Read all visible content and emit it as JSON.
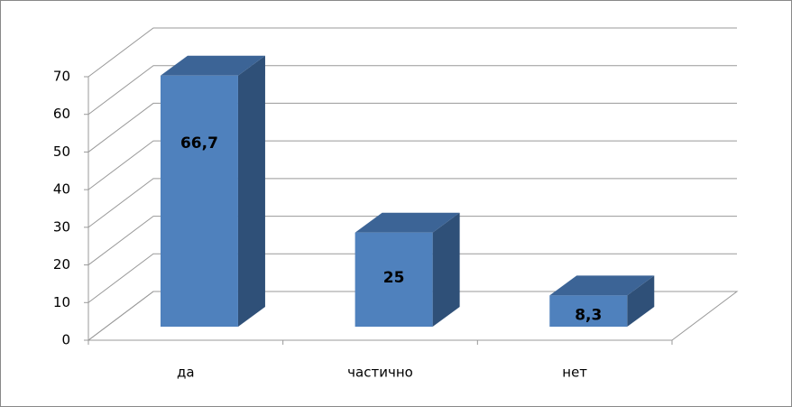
{
  "chart_data": {
    "type": "bar",
    "categories": [
      "да",
      "частично",
      "нет"
    ],
    "values": [
      66.7,
      25,
      8.3
    ],
    "value_labels": [
      "66,7",
      "25",
      "8,3"
    ],
    "color": "#4f81bd",
    "ylim": [
      0,
      70
    ],
    "yticks": [
      0,
      10,
      20,
      30,
      40,
      50,
      60,
      70
    ],
    "grid": true
  }
}
